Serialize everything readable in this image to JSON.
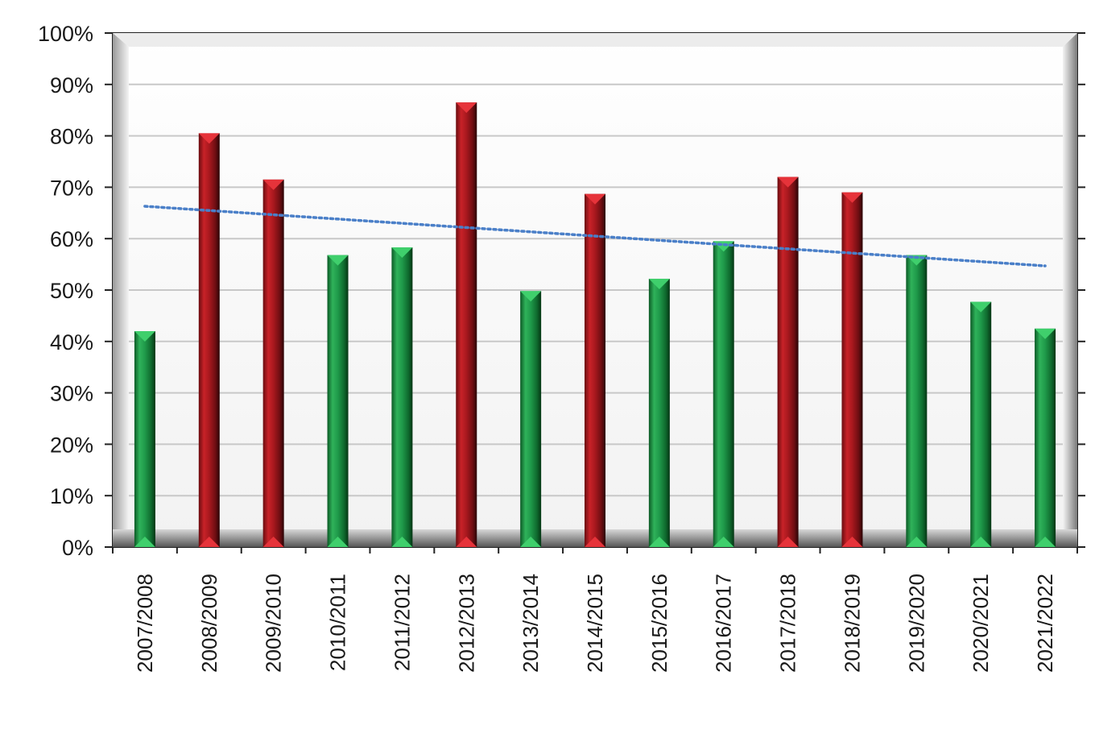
{
  "chart_data": {
    "type": "bar",
    "categories": [
      "2007/2008",
      "2008/2009",
      "2009/2010",
      "2010/2011",
      "2011/2012",
      "2012/2013",
      "2013/2014",
      "2014/2015",
      "2015/2016",
      "2016/2017",
      "2017/2018",
      "2018/2019",
      "2019/2020",
      "2020/2021",
      "2021/2022"
    ],
    "series": [
      {
        "values": [
          42,
          80.5,
          71.5,
          56.8,
          58.3,
          86.5,
          49.8,
          68.7,
          52.2,
          59.5,
          72,
          69,
          56.8,
          47.7,
          42.5
        ],
        "colors": [
          "#1f9a4a",
          "#b0191f",
          "#b0191f",
          "#1f9a4a",
          "#1f9a4a",
          "#b0191f",
          "#1f9a4a",
          "#b0191f",
          "#1f9a4a",
          "#1f9a4a",
          "#b0191f",
          "#b0191f",
          "#1f9a4a",
          "#1f9a4a",
          "#1f9a4a"
        ]
      }
    ],
    "trendline": {
      "style": "dotted",
      "color": "#4a7fc8",
      "start": 66.3,
      "end": 54.7
    },
    "yticks": [
      "0%",
      "10%",
      "20%",
      "30%",
      "40%",
      "50%",
      "60%",
      "70%",
      "80%",
      "90%",
      "100%"
    ],
    "ylim": [
      0,
      100
    ],
    "grid": true,
    "title": "",
    "xlabel": "",
    "ylabel": "",
    "colors": {
      "positive": "#1f9a4a",
      "negative": "#b0191f",
      "trend": "#4a7fc8",
      "grid": "#c8c8c8"
    }
  }
}
